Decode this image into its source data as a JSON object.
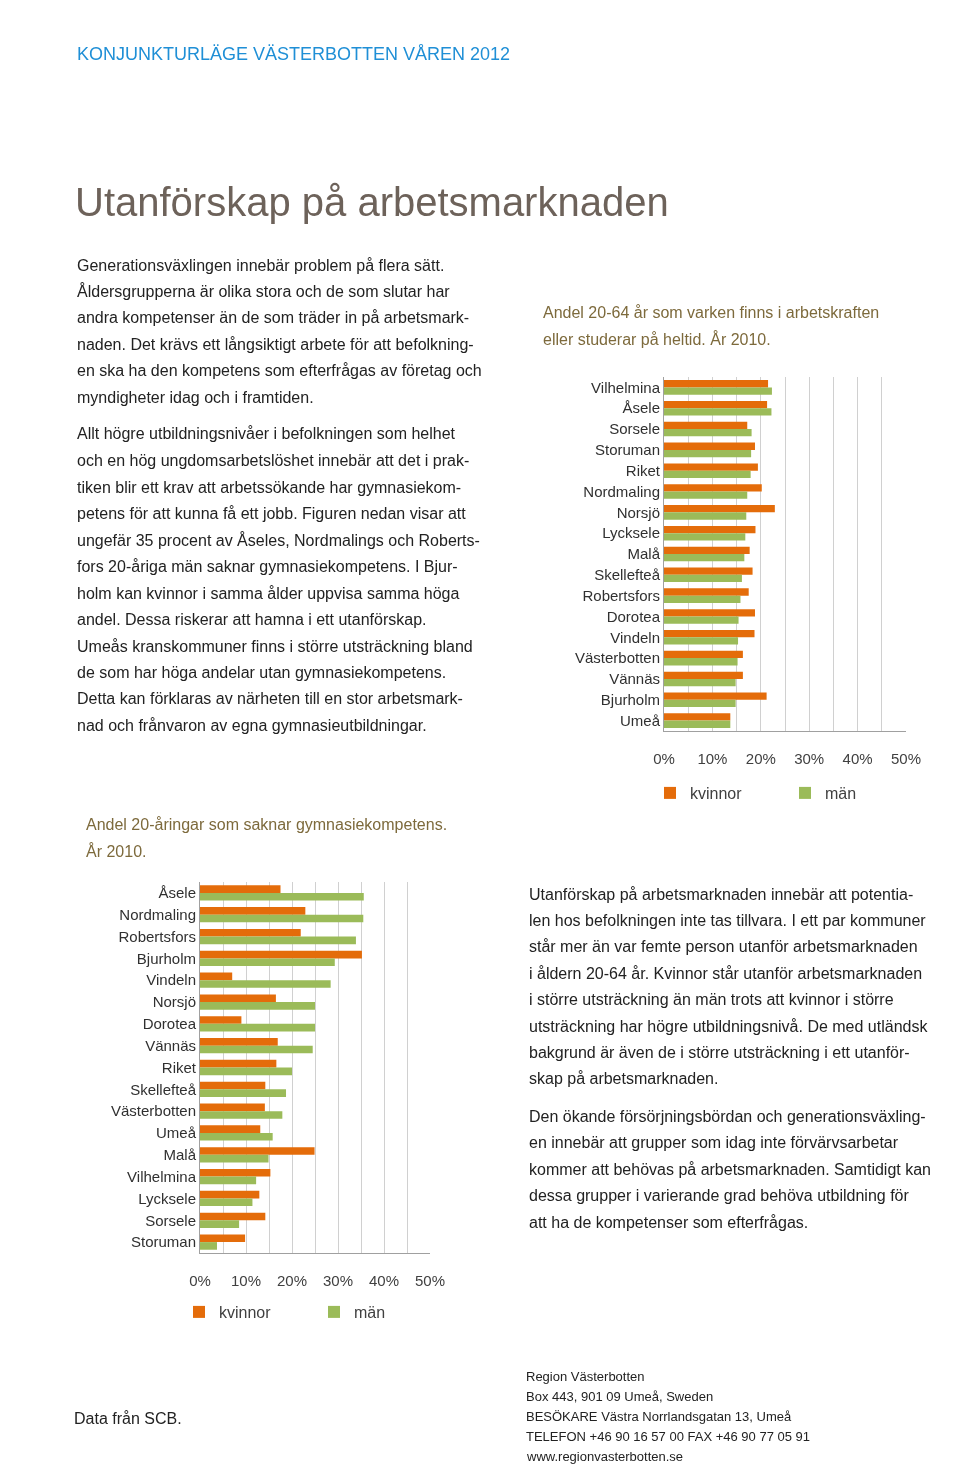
{
  "chart_data": [
    {
      "type": "other",
      "title": "Utanförskap på arbetsmarknaden",
      "annotations": [
        "KONJUNKTURLÄGE VÄSTERBOTTEN VÅREN 2012",
        "Generationsväxlingen innebär problem på flera sätt.\nÅldersgrupperna är olika stora och de som slutar har\nandra kompetenser än de som träder in på arbetsmark-\nnaden. Det krävs ett långsiktigt arbete för att befolkning-\nen ska ha den kompetens som efterfrågas av företag och\nmyndigheter idag och i framtiden.",
        "Allt högre utbildningsnivåer i befolkningen som helhet\noch en hög ungdomsarbetslöshet innebär att det i prak-\ntiken blir ett krav att arbetssökande har gymnasiekom-\npetens för att kunna få ett jobb. Figuren nedan visar att\nungefär 35 procent av Åseles, Nordmalings och Roberts-\nfors 20-åriga män saknar gymnasiekompetens. I Bjur-\nholm kan kvinnor i samma ålder uppvisa samma höga\nandel. Dessa riskerar att hamna i ett utanförskap.\nUmeås kranskommuner finns i större utsträckning bland\nde som har höga andelar utan gymnasiekompetens.\nDetta kan förklaras av närheten till en stor arbetsmark-\nnad och frånvaron av egna gymnasieutbildningar.",
        "Utanförskap på arbetsmarknaden innebär att potentia-\nlen hos befolkningen inte tas tillvara. I ett par kommuner\nstår mer än var femte person utanför arbetsmarknaden\ni åldern 20-64 år. Kvinnor står utanför arbetsmarknaden\ni större utsträckning än män trots att kvinnor i större\nutsträckning har högre utbildningsnivå. De med utländsk\nbakgrund är även de i större utsträckning i ett utanför-\nskap på arbetsmarknaden.",
        "Den ökande försörjningsbördan och generationsväxling-\nen innebär att grupper som idag inte förvärvsarbetar\nkommer att behövas på arbetsmarknaden. Samtidigt kan\ndessa grupper i varierande grad behöva utbildning för\natt ha de kompetenser som efterfrågas.",
        "Region Västerbotten\nBox 443, 901 09 Umeå, Sweden\nBESÖKARE Västra Norrlandsgatan 13, Umeå\nTELEFON +46 90 16 57 00 FAX +46 90 77 05 91\nwww.regionvasterbotten.se"
      ]
    },
    {
      "type": "bar",
      "orientation": "horizontal",
      "title": "Andel 20-64 år som varken finns i arbetskraften\neller studerar på heltid. År 2010.",
      "categories": [
        "Vilhelmina",
        "Åsele",
        "Sorsele",
        "Storuman",
        "Riket",
        "Nordmaling",
        "Norsjö",
        "Lycksele",
        "Malå",
        "Skellefteå",
        "Robertsfors",
        "Dorotea",
        "Vindeln",
        "Västerbotten",
        "Vännäs",
        "Bjurholm",
        "Umeå"
      ],
      "series": [
        {
          "name": "kvinnor",
          "color": "#e46c0a",
          "values": [
            21.5,
            21.3,
            17.2,
            18.8,
            19.4,
            20.2,
            22.9,
            18.9,
            17.7,
            18.3,
            17.5,
            18.8,
            18.7,
            16.3,
            16.3,
            21.2,
            13.7
          ]
        },
        {
          "name": "män",
          "color": "#9bbb59",
          "values": [
            22.3,
            22.2,
            18.1,
            18.0,
            17.9,
            17.2,
            17.0,
            16.8,
            16.6,
            16.1,
            15.8,
            15.4,
            15.3,
            15.2,
            14.8,
            14.8,
            13.7
          ]
        }
      ],
      "xlim": [
        0,
        50
      ],
      "xticks": [
        {
          "value": 0,
          "label": "0%"
        },
        {
          "value": 5,
          "label": null
        },
        {
          "value": 10,
          "label": "10%"
        },
        {
          "value": 15,
          "label": null
        },
        {
          "value": 20,
          "label": "20%"
        },
        {
          "value": 25,
          "label": null
        },
        {
          "value": 30,
          "label": "30%"
        },
        {
          "value": 35,
          "label": null
        },
        {
          "value": 40,
          "label": "40%"
        },
        {
          "value": 45,
          "label": null
        },
        {
          "value": 50,
          "label": "50%"
        }
      ],
      "grid": "x",
      "legend": "bottom"
    },
    {
      "type": "bar",
      "orientation": "horizontal",
      "title": "Andel 20-åringar som saknar gymnasiekompetens.\nÅr 2010.",
      "categories": [
        "Åsele",
        "Nordmaling",
        "Robertsfors",
        "Bjurholm",
        "Vindeln",
        "Norsjö",
        "Dorotea",
        "Vännäs",
        "Riket",
        "Skellefteå",
        "Västerbotten",
        "Umeå",
        "Malå",
        "Vilhelmina",
        "Lycksele",
        "Sorsele",
        "Storuman"
      ],
      "series": [
        {
          "name": "kvinnor",
          "color": "#e46c0a",
          "values": [
            17.5,
            22.9,
            21.9,
            35.2,
            7.0,
            16.5,
            9.0,
            16.9,
            16.6,
            14.2,
            14.1,
            13.1,
            24.9,
            15.3,
            12.9,
            14.2,
            9.8
          ]
        },
        {
          "name": "män",
          "color": "#9bbb59",
          "values": [
            35.6,
            35.5,
            33.9,
            29.3,
            28.4,
            25.0,
            25.0,
            24.5,
            20.0,
            18.7,
            17.9,
            15.8,
            14.9,
            12.2,
            11.4,
            8.5,
            3.7
          ]
        }
      ],
      "xlim": [
        0,
        50
      ],
      "xticks": [
        {
          "value": 0,
          "label": "0%"
        },
        {
          "value": 5,
          "label": null
        },
        {
          "value": 10,
          "label": "10%"
        },
        {
          "value": 15,
          "label": null
        },
        {
          "value": 20,
          "label": "20%"
        },
        {
          "value": 25,
          "label": null
        },
        {
          "value": 30,
          "label": "30%"
        },
        {
          "value": 35,
          "label": null
        },
        {
          "value": 40,
          "label": "40%"
        },
        {
          "value": 45,
          "label": null
        },
        {
          "value": 50,
          "label": "50%"
        }
      ],
      "grid": "x",
      "legend": "bottom",
      "annotations": [
        "Data från SCB."
      ]
    }
  ]
}
